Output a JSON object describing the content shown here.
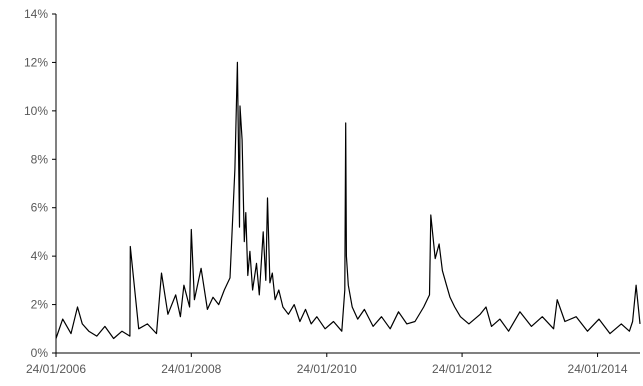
{
  "chart_data": {
    "type": "line",
    "title": "",
    "xlabel": "",
    "ylabel": "",
    "y_unit": "%",
    "ylim": [
      0,
      14
    ],
    "y_ticks": [
      {
        "value": 0,
        "label": "0%"
      },
      {
        "value": 2,
        "label": "2%"
      },
      {
        "value": 4,
        "label": "4%"
      },
      {
        "value": 6,
        "label": "6%"
      },
      {
        "value": 8,
        "label": "8%"
      },
      {
        "value": 10,
        "label": "10%"
      },
      {
        "value": 12,
        "label": "12%"
      },
      {
        "value": 14,
        "label": "14%"
      }
    ],
    "xlim": [
      "2006-01-24",
      "2014-09-10"
    ],
    "x_ticks": [
      {
        "value": "2006-01-24",
        "label": "24/01/2006"
      },
      {
        "value": "2008-01-24",
        "label": "24/01/2008"
      },
      {
        "value": "2010-01-24",
        "label": "24/01/2010"
      },
      {
        "value": "2012-01-24",
        "label": "24/01/2012"
      },
      {
        "value": "2014-01-24",
        "label": "24/01/2014"
      }
    ],
    "grid": false,
    "line_color": "#000000",
    "series": [
      {
        "x": [
          "2006-01-24",
          "2006-03-01",
          "2006-04-15",
          "2006-05-20",
          "2006-06-15",
          "2006-07-20",
          "2006-09-01",
          "2006-10-15",
          "2006-12-01",
          "2007-01-15",
          "2007-02-27",
          "2007-03-01",
          "2007-04-15",
          "2007-06-01",
          "2007-07-20",
          "2007-08-16",
          "2007-09-20",
          "2007-11-01",
          "2007-11-26",
          "2007-12-15",
          "2008-01-15",
          "2008-01-24",
          "2008-02-10",
          "2008-03-17",
          "2008-04-20",
          "2008-05-20",
          "2008-06-20",
          "2008-07-20",
          "2008-08-20",
          "2008-09-15",
          "2008-09-29",
          "2008-10-10",
          "2008-10-13",
          "2008-10-24",
          "2008-11-05",
          "2008-11-13",
          "2008-11-24",
          "2008-12-05",
          "2008-12-20",
          "2009-01-10",
          "2009-01-25",
          "2009-02-15",
          "2009-03-01",
          "2009-03-10",
          "2009-03-23",
          "2009-04-05",
          "2009-04-20",
          "2009-05-10",
          "2009-06-01",
          "2009-07-01",
          "2009-08-01",
          "2009-09-01",
          "2009-10-01",
          "2009-11-01",
          "2009-12-01",
          "2010-01-15",
          "2010-03-01",
          "2010-04-15",
          "2010-05-01",
          "2010-05-06",
          "2010-05-10",
          "2010-05-20",
          "2010-06-10",
          "2010-07-10",
          "2010-08-15",
          "2010-10-01",
          "2010-11-15",
          "2011-01-01",
          "2011-02-15",
          "2011-04-01",
          "2011-05-15",
          "2011-07-01",
          "2011-08-01",
          "2011-08-08",
          "2011-08-20",
          "2011-09-01",
          "2011-09-22",
          "2011-10-10",
          "2011-11-01",
          "2011-11-20",
          "2011-12-15",
          "2012-01-15",
          "2012-03-01",
          "2012-05-01",
          "2012-06-01",
          "2012-07-01",
          "2012-08-15",
          "2012-10-01",
          "2012-12-01",
          "2013-02-01",
          "2013-04-01",
          "2013-06-01",
          "2013-06-20",
          "2013-08-01",
          "2013-10-01",
          "2013-12-01",
          "2014-02-01",
          "2014-04-01",
          "2014-06-01",
          "2014-07-15",
          "2014-08-01",
          "2014-08-20",
          "2014-09-10"
        ],
        "y": [
          0.6,
          1.4,
          0.8,
          1.9,
          1.2,
          0.9,
          0.7,
          1.1,
          0.6,
          0.9,
          0.7,
          4.4,
          1.0,
          1.2,
          0.8,
          3.3,
          1.6,
          2.4,
          1.5,
          2.8,
          1.9,
          5.1,
          2.2,
          3.5,
          1.8,
          2.3,
          2.0,
          2.6,
          3.1,
          7.6,
          12.0,
          5.2,
          10.2,
          8.8,
          4.6,
          5.8,
          3.2,
          4.2,
          2.6,
          3.7,
          2.4,
          5.0,
          3.0,
          6.4,
          2.9,
          3.3,
          2.2,
          2.6,
          1.9,
          1.6,
          2.0,
          1.3,
          1.8,
          1.2,
          1.5,
          1.0,
          1.3,
          0.9,
          2.6,
          9.5,
          4.0,
          2.8,
          1.9,
          1.4,
          1.8,
          1.1,
          1.5,
          1.0,
          1.7,
          1.2,
          1.3,
          1.9,
          2.4,
          5.7,
          4.8,
          3.9,
          4.5,
          3.4,
          2.8,
          2.3,
          1.9,
          1.5,
          1.2,
          1.6,
          1.9,
          1.1,
          1.4,
          0.9,
          1.7,
          1.1,
          1.5,
          1.0,
          2.2,
          1.3,
          1.5,
          0.9,
          1.4,
          0.8,
          1.2,
          0.9,
          1.3,
          2.8,
          1.2
        ]
      }
    ]
  }
}
